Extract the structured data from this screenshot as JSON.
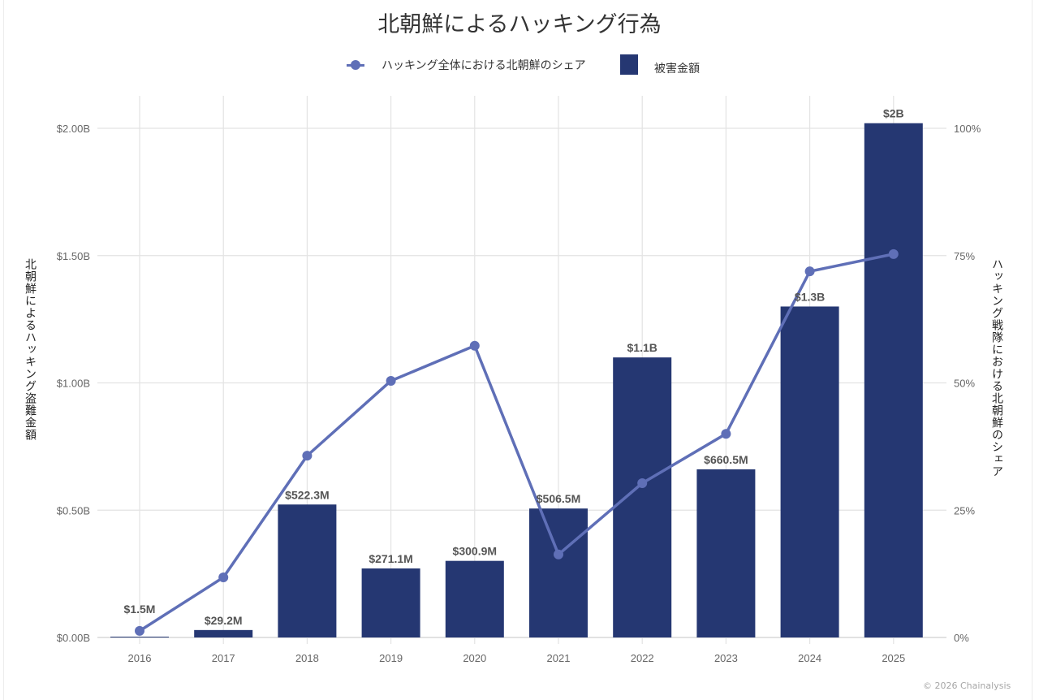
{
  "chart_data": {
    "type": "bar",
    "title": "北朝鮮によるハッキング行為",
    "categories": [
      "2016",
      "2017",
      "2018",
      "2019",
      "2020",
      "2021",
      "2022",
      "2023",
      "2024",
      "2025"
    ],
    "series": [
      {
        "name": "被害金額",
        "type": "bar",
        "axis": "left",
        "color": "#253772",
        "values": [
          0.0015,
          0.0292,
          0.5223,
          0.2711,
          0.3009,
          0.5065,
          1.1,
          0.6605,
          1.3,
          2.02
        ],
        "unit": "B USD",
        "labels": [
          "$1.5M",
          "$29.2M",
          "$522.3M",
          "$271.1M",
          "$300.9M",
          "$506.5M",
          "$1.1B",
          "$660.5M",
          "$1.3B",
          "$2B"
        ]
      },
      {
        "name": "ハッキング全体における北朝鮮のシェア",
        "type": "line",
        "axis": "right",
        "color": "#5f6fb7",
        "values": [
          1.3,
          11.8,
          35.7,
          50.4,
          57.3,
          16.3,
          30.3,
          40.0,
          71.9,
          75.3
        ],
        "unit": "%"
      }
    ],
    "ylabel": "北朝鮮によるハッキング盗難金額",
    "y2label": "ハッキング戦隊における北朝鮮のシェア",
    "ylim": [
      0,
      2.0
    ],
    "y2lim": [
      0,
      100
    ],
    "yticks": [
      0,
      0.5,
      1.0,
      1.5,
      2.0
    ],
    "ytick_labels": [
      "$0.00B",
      "$0.50B",
      "$1.00B",
      "$1.50B",
      "$2.00B"
    ],
    "y2ticks": [
      0,
      25,
      50,
      75,
      100
    ],
    "y2tick_labels": [
      "0%",
      "25%",
      "50%",
      "75%",
      "100%"
    ],
    "grid": true,
    "legend_position": "top-center"
  },
  "legend": {
    "line_label": "ハッキング全体における北朝鮮のシェア",
    "bar_label": "被害金額"
  },
  "footer": {
    "copyright": "© 2026 Chainalysis"
  }
}
